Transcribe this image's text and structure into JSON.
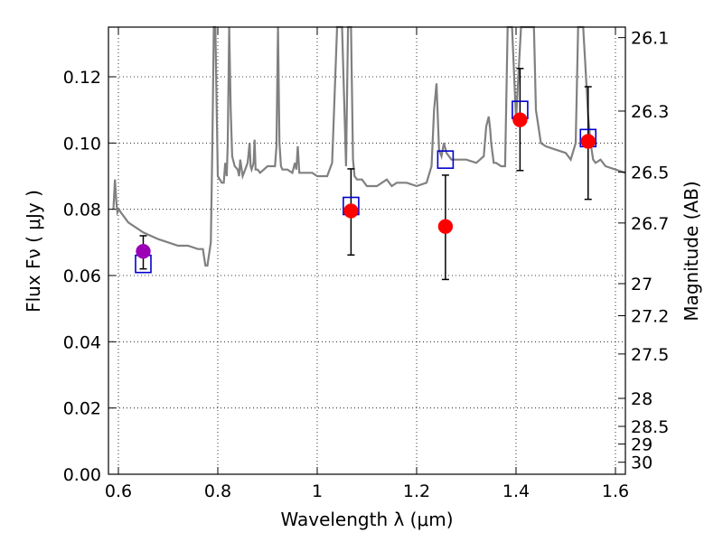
{
  "chart_data": {
    "type": "scatter",
    "title": "",
    "xlabel": "Wavelength  λ (μm)",
    "ylabel": "Flux  Fν  ( μJy )",
    "ylabel_right": "Magnitude (AB)",
    "xlim": [
      0.58,
      1.62
    ],
    "ylim": [
      0.0,
      0.135
    ],
    "x_ticks": [
      0.6,
      0.8,
      1.0,
      1.2,
      1.4,
      1.6
    ],
    "x_tick_labels": [
      "0.6",
      "0.8",
      "1",
      "1.2",
      "1.4",
      "1.6"
    ],
    "y_ticks": [
      0.0,
      0.02,
      0.04,
      0.06,
      0.08,
      0.1,
      0.12
    ],
    "y_tick_labels": [
      "0.00",
      "0.02",
      "0.04",
      "0.06",
      "0.08",
      "0.10",
      "0.12"
    ],
    "right_ticks": [
      26.1,
      26.3,
      26.5,
      26.7,
      27,
      27.2,
      27.5,
      28,
      28.5,
      29,
      30
    ],
    "right_tick_labels": [
      "26.1",
      "26.3",
      "26.5",
      "26.7",
      "27",
      "27.2",
      "27.5",
      "28",
      "28.5",
      "29",
      "30"
    ],
    "grid": true,
    "colors": {
      "model": "#808080",
      "model_points": "#0000cc",
      "observed": "#ff0000",
      "observed_first": "#9b00b4",
      "errorbar": "#000000"
    },
    "model_spectrum": {
      "x": [
        0.59,
        0.593,
        0.596,
        0.598,
        0.601,
        0.605,
        0.62,
        0.65,
        0.68,
        0.7,
        0.72,
        0.74,
        0.76,
        0.77,
        0.772,
        0.775,
        0.779,
        0.782,
        0.786,
        0.789,
        0.792,
        0.795,
        0.8,
        0.808,
        0.812,
        0.815,
        0.818,
        0.82,
        0.823,
        0.826,
        0.829,
        0.834,
        0.84,
        0.843,
        0.845,
        0.85,
        0.855,
        0.86,
        0.864,
        0.866,
        0.868,
        0.872,
        0.874,
        0.876,
        0.88,
        0.885,
        0.9,
        0.915,
        0.918,
        0.921,
        0.924,
        0.927,
        0.93,
        0.94,
        0.95,
        0.955,
        0.958,
        0.961,
        0.964,
        0.967,
        0.99,
        1.0,
        1.01,
        1.02,
        1.03,
        1.04,
        1.045,
        1.05,
        1.058,
        1.062,
        1.068,
        1.072,
        1.075,
        1.08,
        1.09,
        1.1,
        1.12,
        1.14,
        1.15,
        1.16,
        1.18,
        1.2,
        1.22,
        1.23,
        1.235,
        1.24,
        1.245,
        1.25,
        1.255,
        1.26,
        1.27,
        1.3,
        1.32,
        1.335,
        1.34,
        1.345,
        1.348,
        1.35,
        1.355,
        1.36,
        1.37,
        1.378,
        1.383,
        1.388,
        1.392,
        1.4,
        1.41,
        1.418,
        1.422,
        1.425,
        1.428,
        1.432,
        1.436,
        1.44,
        1.45,
        1.46,
        1.48,
        1.5,
        1.51,
        1.52,
        1.525,
        1.53,
        1.535,
        1.54,
        1.545,
        1.55,
        1.555,
        1.56,
        1.57,
        1.58,
        1.6,
        1.62
      ],
      "y": [
        0.08,
        0.089,
        0.082,
        0.079,
        0.08,
        0.079,
        0.076,
        0.073,
        0.071,
        0.07,
        0.069,
        0.069,
        0.068,
        0.068,
        0.066,
        0.063,
        0.063,
        0.066,
        0.07,
        0.1,
        0.135,
        0.135,
        0.09,
        0.088,
        0.088,
        0.094,
        0.09,
        0.1,
        0.135,
        0.11,
        0.096,
        0.093,
        0.092,
        0.09,
        0.095,
        0.09,
        0.092,
        0.094,
        0.1,
        0.093,
        0.092,
        0.094,
        0.101,
        0.092,
        0.092,
        0.091,
        0.093,
        0.093,
        0.099,
        0.135,
        0.1,
        0.093,
        0.092,
        0.092,
        0.091,
        0.094,
        0.092,
        0.099,
        0.091,
        0.091,
        0.091,
        0.09,
        0.09,
        0.09,
        0.094,
        0.135,
        0.135,
        0.135,
        0.093,
        0.135,
        0.135,
        0.095,
        0.09,
        0.089,
        0.089,
        0.087,
        0.087,
        0.089,
        0.087,
        0.088,
        0.088,
        0.087,
        0.088,
        0.093,
        0.11,
        0.118,
        0.098,
        0.096,
        0.1,
        0.097,
        0.095,
        0.095,
        0.094,
        0.096,
        0.105,
        0.108,
        0.104,
        0.1,
        0.094,
        0.094,
        0.093,
        0.093,
        0.135,
        0.135,
        0.135,
        0.107,
        0.135,
        0.135,
        0.135,
        0.135,
        0.135,
        0.135,
        0.135,
        0.11,
        0.1,
        0.099,
        0.098,
        0.097,
        0.095,
        0.1,
        0.135,
        0.135,
        0.135,
        0.122,
        0.108,
        0.1,
        0.095,
        0.094,
        0.095,
        0.093,
        0.092,
        0.091
      ]
    },
    "series": [
      {
        "marker": "square",
        "x": [
          0.65,
          1.068,
          1.258,
          1.408,
          1.545
        ],
        "y": [
          0.0635,
          0.081,
          0.095,
          0.11,
          0.1015
        ]
      },
      {
        "marker": "circle",
        "x": [
          0.65,
          1.068,
          1.258,
          1.408,
          1.545
        ],
        "y": [
          0.0673,
          0.0795,
          0.0748,
          0.107,
          0.1005
        ],
        "err_low": [
          0.0053,
          0.0133,
          0.016,
          0.0153,
          0.0175
        ],
        "err_high": [
          0.0047,
          0.0127,
          0.0155,
          0.0155,
          0.0165
        ]
      }
    ]
  }
}
